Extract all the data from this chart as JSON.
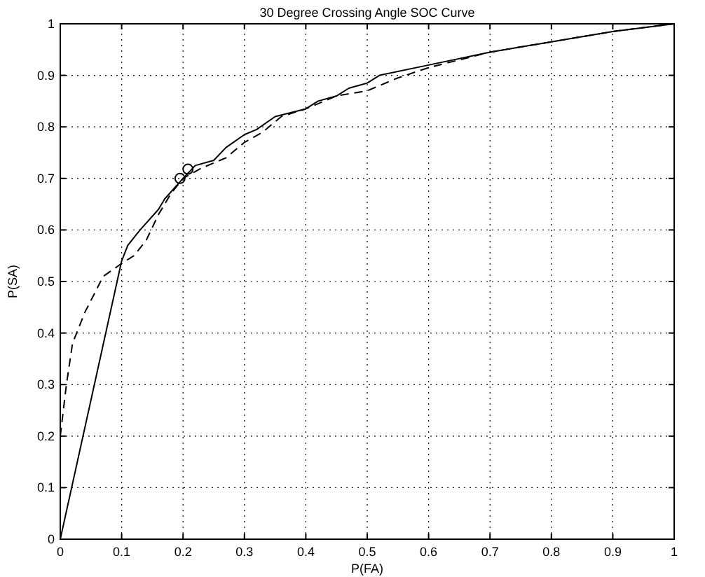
{
  "chart_data": {
    "type": "line",
    "title": "30 Degree Crossing Angle SOC Curve",
    "xlabel": "P(FA)",
    "ylabel": "P(SA)",
    "xlim": [
      0,
      1
    ],
    "ylim": [
      0,
      1
    ],
    "xticks": [
      0,
      0.1,
      0.2,
      0.3,
      0.4,
      0.5,
      0.6,
      0.7,
      0.8,
      0.9,
      1
    ],
    "yticks": [
      0,
      0.1,
      0.2,
      0.3,
      0.4,
      0.5,
      0.6,
      0.7,
      0.8,
      0.9,
      1
    ],
    "grid": true,
    "series": [
      {
        "color": "#000000",
        "line_style": "solid",
        "x": [
          0,
          0.1,
          0.11,
          0.13,
          0.16,
          0.17,
          0.2,
          0.22,
          0.25,
          0.27,
          0.3,
          0.32,
          0.35,
          0.4,
          0.42,
          0.45,
          0.47,
          0.5,
          0.52,
          0.6,
          0.7,
          0.8,
          0.9,
          1
        ],
        "values": [
          0,
          0.54,
          0.57,
          0.6,
          0.64,
          0.66,
          0.7,
          0.725,
          0.735,
          0.76,
          0.785,
          0.795,
          0.82,
          0.835,
          0.85,
          0.86,
          0.875,
          0.885,
          0.9,
          0.92,
          0.945,
          0.965,
          0.985,
          1
        ]
      },
      {
        "color": "#000000",
        "line_style": "dashed",
        "x": [
          0,
          0.01,
          0.02,
          0.04,
          0.07,
          0.1,
          0.12,
          0.14,
          0.16,
          0.18,
          0.2,
          0.23,
          0.27,
          0.3,
          0.33,
          0.36,
          0.4,
          0.45,
          0.5,
          0.55,
          0.6,
          0.7,
          0.8,
          0.9,
          1
        ],
        "values": [
          0.2,
          0.3,
          0.38,
          0.44,
          0.51,
          0.535,
          0.55,
          0.58,
          0.63,
          0.67,
          0.7,
          0.72,
          0.74,
          0.77,
          0.79,
          0.82,
          0.835,
          0.86,
          0.87,
          0.895,
          0.915,
          0.945,
          0.965,
          0.985,
          1
        ]
      },
      {
        "type": "scatter",
        "color": "#000000",
        "marker": "circle",
        "x": [
          0.195,
          0.208
        ],
        "values": [
          0.7,
          0.718
        ]
      }
    ]
  }
}
